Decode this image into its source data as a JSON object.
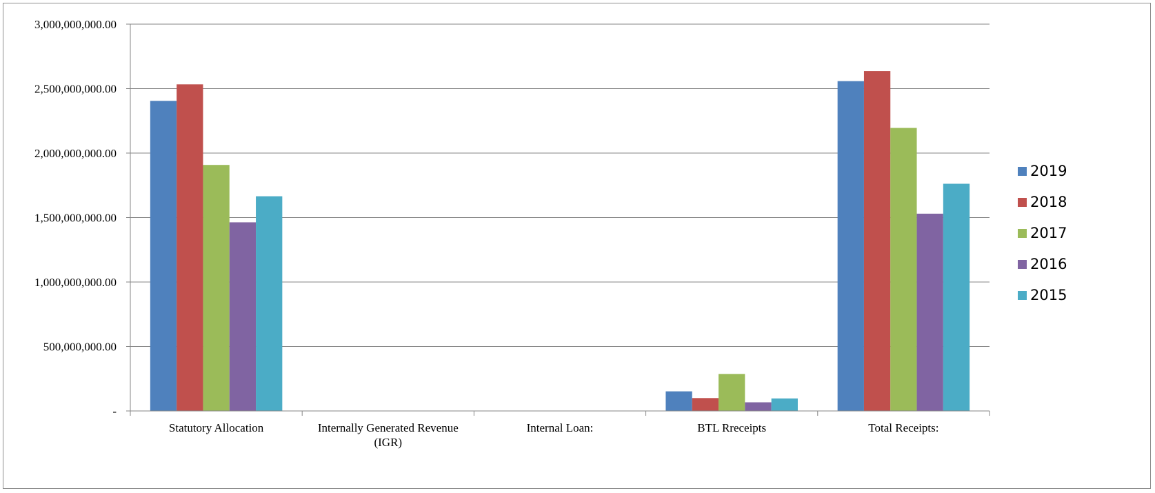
{
  "chart_data": {
    "type": "bar",
    "title": "",
    "xlabel": "",
    "ylabel": "",
    "ylim": [
      0,
      3000000000
    ],
    "y_ticks": [
      {
        "value": 0,
        "label": "-"
      },
      {
        "value": 500000000,
        "label": "500,000,000.00"
      },
      {
        "value": 1000000000,
        "label": "1,000,000,000.00"
      },
      {
        "value": 1500000000,
        "label": "1,500,000,000.00"
      },
      {
        "value": 2000000000,
        "label": "2,000,000,000.00"
      },
      {
        "value": 2500000000,
        "label": "2,500,000,000.00"
      },
      {
        "value": 3000000000,
        "label": "3,000,000,000.00"
      }
    ],
    "grid": true,
    "legend_position": "right",
    "categories": [
      [
        "Statutory Allocation"
      ],
      [
        "Internally Generated Revenue",
        "(IGR)"
      ],
      [
        "Internal Loan:"
      ],
      [
        "BTL Rreceipts"
      ],
      [
        "Total Receipts:"
      ]
    ],
    "series": [
      {
        "name": "2019",
        "color": "#4f81bd",
        "values": [
          2405000000,
          0,
          0,
          152000000,
          2558000000
        ]
      },
      {
        "name": "2018",
        "color": "#c0504d",
        "values": [
          2533000000,
          0,
          0,
          100000000,
          2636000000
        ]
      },
      {
        "name": "2017",
        "color": "#9bbb59",
        "values": [
          1908000000,
          0,
          0,
          287000000,
          2195000000
        ]
      },
      {
        "name": "2016",
        "color": "#8064a2",
        "values": [
          1463000000,
          0,
          0,
          67000000,
          1530000000
        ]
      },
      {
        "name": "2015",
        "color": "#4bacc6",
        "values": [
          1665000000,
          0,
          0,
          97000000,
          1762000000
        ]
      }
    ]
  }
}
